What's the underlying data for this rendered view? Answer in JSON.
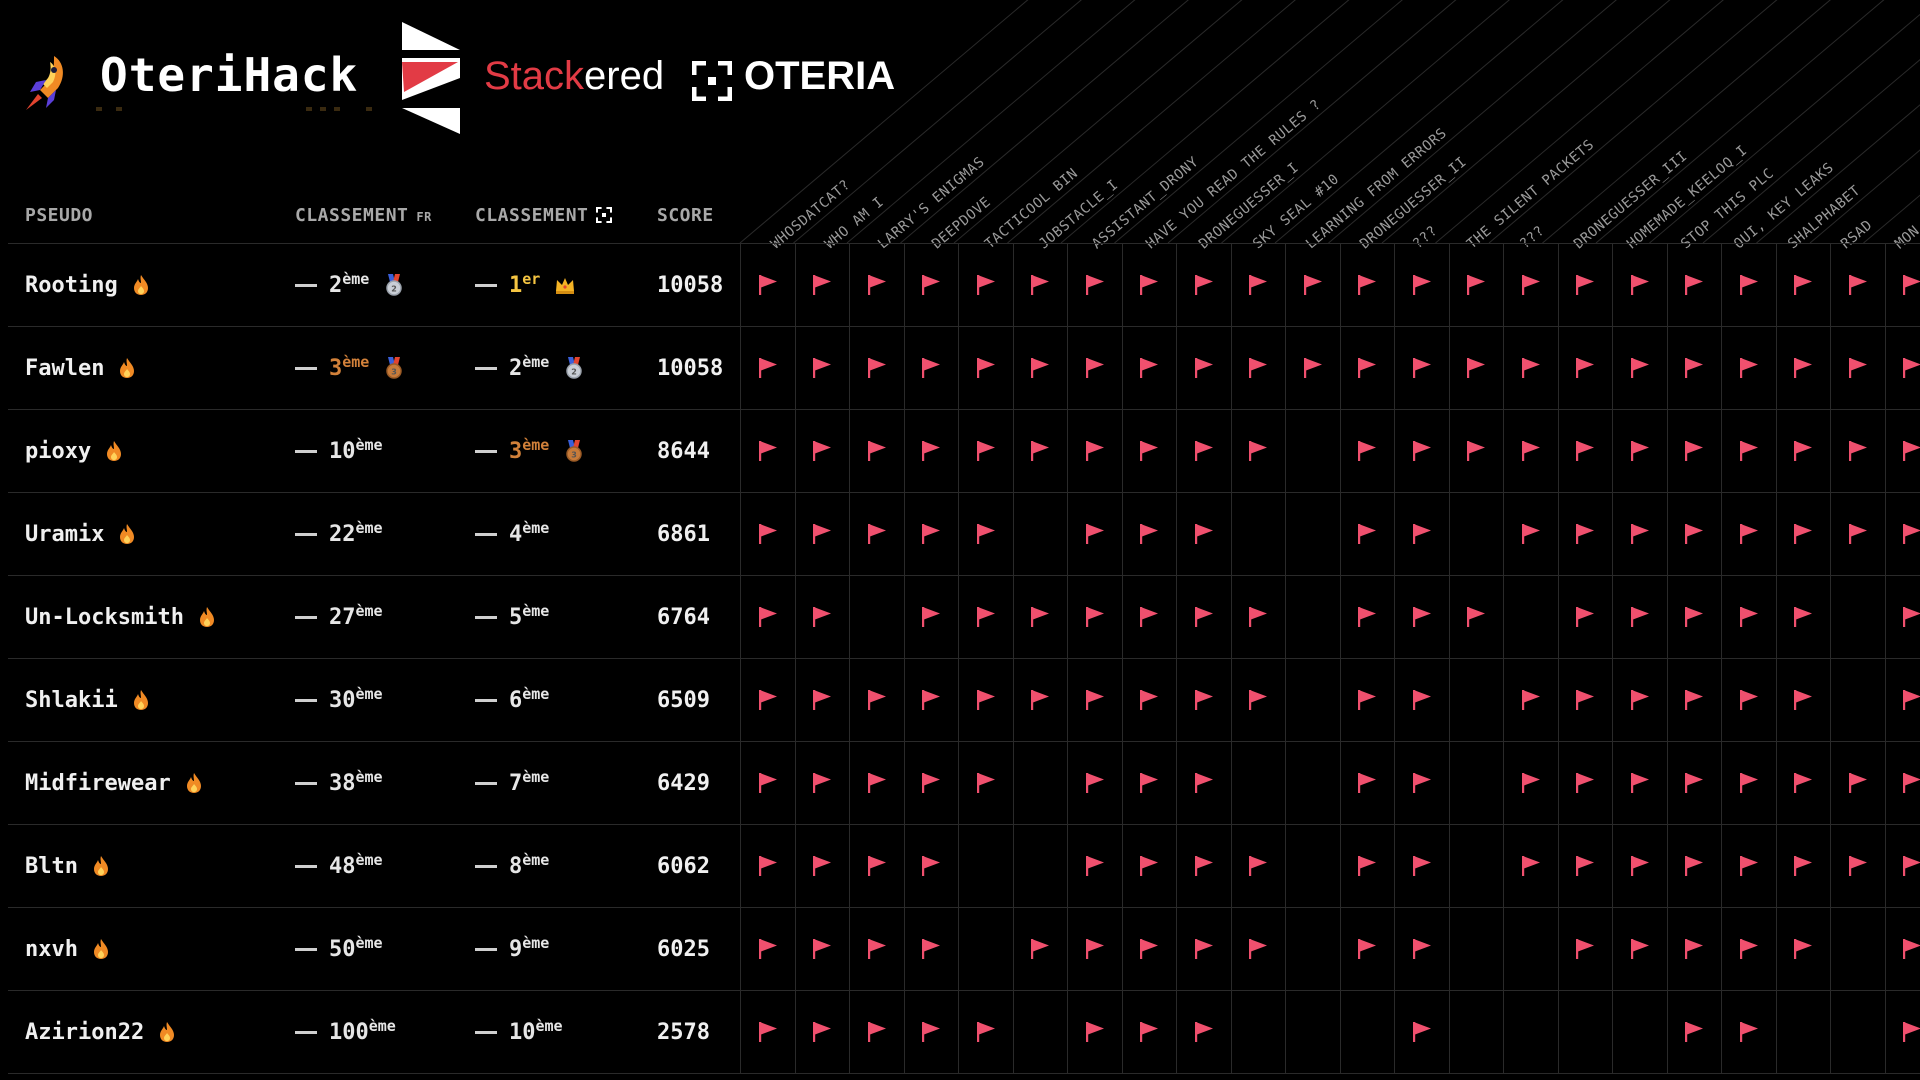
{
  "header": {
    "brand_title": "OteriHack",
    "sponsor1_part1": "Stack",
    "sponsor1_part2": "ered",
    "sponsor2": "OTERIA"
  },
  "columns": {
    "pseudo": "PSEUDO",
    "classement_fr": "CLASSEMENT",
    "fr_tag": "FR",
    "classement_oteria": "CLASSEMENT",
    "score": "SCORE"
  },
  "challenges": [
    "WHOSDATCAT?",
    "WHO AM I",
    "LARRY'S ENIGMAS",
    "DEEPDOVE",
    "TACTICOOL BIN",
    "JOBSTACLE_I",
    "ASSISTANT_DRONY",
    "HAVE YOU READ THE RULES ?",
    "DRONEGUESSER_I",
    "SKY SEAL #10",
    "LEARNING FROM ERRORS",
    "DRONEGUESSER_II",
    "???",
    "THE SILENT PACKETS",
    "???",
    "DRONEGUESSER_III",
    "HOMEMADE_KEELOQ_I",
    "STOP THIS PLC",
    "OUI, KEY LEAKS",
    "SHALPHABET",
    "RSAD",
    "MON"
  ],
  "players": [
    {
      "name": "Rooting",
      "fr_num": "2",
      "fr_suffix": "ème",
      "fr_style": "normal",
      "fr_medal": "silver",
      "ot_num": "1",
      "ot_suffix": "er",
      "ot_style": "gold",
      "ot_medal": "crown",
      "score": "10058",
      "flags": [
        1,
        1,
        1,
        1,
        1,
        1,
        1,
        1,
        1,
        1,
        1,
        1,
        1,
        1,
        1,
        1,
        1,
        1,
        1,
        1,
        1,
        1
      ]
    },
    {
      "name": "Fawlen",
      "fr_num": "3",
      "fr_suffix": "ème",
      "fr_style": "bronze",
      "fr_medal": "bronze",
      "ot_num": "2",
      "ot_suffix": "ème",
      "ot_style": "normal",
      "ot_medal": "silver",
      "score": "10058",
      "flags": [
        1,
        1,
        1,
        1,
        1,
        1,
        1,
        1,
        1,
        1,
        1,
        1,
        1,
        1,
        1,
        1,
        1,
        1,
        1,
        1,
        1,
        1
      ]
    },
    {
      "name": "pioxy",
      "fr_num": "10",
      "fr_suffix": "ème",
      "fr_style": "normal",
      "fr_medal": "",
      "ot_num": "3",
      "ot_suffix": "ème",
      "ot_style": "bronze",
      "ot_medal": "bronze",
      "score": "8644",
      "flags": [
        1,
        1,
        1,
        1,
        1,
        1,
        1,
        1,
        1,
        1,
        0,
        1,
        1,
        1,
        1,
        1,
        1,
        1,
        1,
        1,
        1,
        1
      ]
    },
    {
      "name": "Uramix",
      "fr_num": "22",
      "fr_suffix": "ème",
      "fr_style": "normal",
      "fr_medal": "",
      "ot_num": "4",
      "ot_suffix": "ème",
      "ot_style": "normal",
      "ot_medal": "",
      "score": "6861",
      "flags": [
        1,
        1,
        1,
        1,
        1,
        0,
        1,
        1,
        1,
        0,
        0,
        1,
        1,
        0,
        1,
        1,
        1,
        1,
        1,
        1,
        1,
        1
      ]
    },
    {
      "name": "Un-Locksmith",
      "fr_num": "27",
      "fr_suffix": "ème",
      "fr_style": "normal",
      "fr_medal": "",
      "ot_num": "5",
      "ot_suffix": "ème",
      "ot_style": "normal",
      "ot_medal": "",
      "score": "6764",
      "flags": [
        1,
        1,
        0,
        1,
        1,
        1,
        1,
        1,
        1,
        1,
        0,
        1,
        1,
        1,
        0,
        1,
        1,
        1,
        1,
        1,
        0,
        1
      ]
    },
    {
      "name": "Shlakii",
      "fr_num": "30",
      "fr_suffix": "ème",
      "fr_style": "normal",
      "fr_medal": "",
      "ot_num": "6",
      "ot_suffix": "ème",
      "ot_style": "normal",
      "ot_medal": "",
      "score": "6509",
      "flags": [
        1,
        1,
        1,
        1,
        1,
        1,
        1,
        1,
        1,
        1,
        0,
        1,
        1,
        0,
        1,
        1,
        1,
        1,
        1,
        1,
        0,
        1
      ]
    },
    {
      "name": "Midfirewear",
      "fr_num": "38",
      "fr_suffix": "ème",
      "fr_style": "normal",
      "fr_medal": "",
      "ot_num": "7",
      "ot_suffix": "ème",
      "ot_style": "normal",
      "ot_medal": "",
      "score": "6429",
      "flags": [
        1,
        1,
        1,
        1,
        1,
        0,
        1,
        1,
        1,
        0,
        0,
        1,
        1,
        0,
        1,
        1,
        1,
        1,
        1,
        1,
        1,
        1
      ]
    },
    {
      "name": "Bltn",
      "fr_num": "48",
      "fr_suffix": "ème",
      "fr_style": "normal",
      "fr_medal": "",
      "ot_num": "8",
      "ot_suffix": "ème",
      "ot_style": "normal",
      "ot_medal": "",
      "score": "6062",
      "flags": [
        1,
        1,
        1,
        1,
        0,
        0,
        1,
        1,
        1,
        1,
        0,
        1,
        1,
        0,
        1,
        1,
        1,
        1,
        1,
        1,
        1,
        1
      ]
    },
    {
      "name": "nxvh",
      "fr_num": "50",
      "fr_suffix": "ème",
      "fr_style": "normal",
      "fr_medal": "",
      "ot_num": "9",
      "ot_suffix": "ème",
      "ot_style": "normal",
      "ot_medal": "",
      "score": "6025",
      "flags": [
        1,
        1,
        1,
        1,
        0,
        1,
        1,
        1,
        1,
        1,
        0,
        1,
        1,
        0,
        0,
        1,
        1,
        1,
        1,
        1,
        0,
        1
      ]
    },
    {
      "name": "Azirion22",
      "fr_num": "100",
      "fr_suffix": "ème",
      "fr_style": "normal",
      "fr_medal": "",
      "ot_num": "10",
      "ot_suffix": "ème",
      "ot_style": "normal",
      "ot_medal": "",
      "score": "2578",
      "flags": [
        1,
        1,
        1,
        1,
        1,
        0,
        1,
        1,
        1,
        0,
        0,
        0,
        1,
        0,
        0,
        0,
        0,
        1,
        1,
        0,
        0,
        1
      ]
    }
  ],
  "colors": {
    "flag": "#f0506e",
    "gold": "#f5c542",
    "bronze": "#d2813a",
    "grid": "#2a2a2a"
  }
}
